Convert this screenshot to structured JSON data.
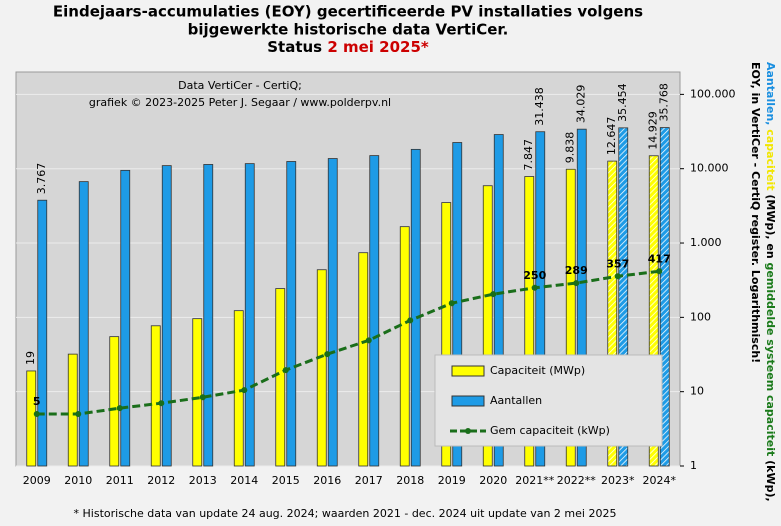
{
  "chart_data": {
    "type": "bar",
    "title": [
      "Eindejaars-accumulaties (EOY) gecertificeerde PV installaties volgens",
      "bijgewerkte historische data VertiCer."
    ],
    "status": "Status",
    "status_date": "2 mei 2025*",
    "status_date_color": "#cc0000",
    "annotations": [
      "Data VertiCer - CertiQ;",
      "grafiek © 2023-2025 Peter J. Segaar / www.polderpv.nl"
    ],
    "footnote": "* Historische data van update 24 aug. 2024; waarden 2021 - dec. 2024 uit update van 2 mei 2025",
    "y_label": [
      [
        {
          "text": "Aantallen, ",
          "color": "#1a8fe0"
        },
        {
          "text": "capaciteit",
          "color": "#f2e600"
        },
        {
          "text": " (MWp), en ",
          "color": "#000000"
        },
        {
          "text": "gemiddelde systeem capaciteit",
          "color": "#1a7a1a"
        },
        {
          "text": " (kWp),",
          "color": "#000000"
        }
      ],
      [
        {
          "text": "EOY, in VertiCer - CertiQ register. Logarithmisch!",
          "color": "#000000"
        }
      ]
    ],
    "categories": [
      "2009",
      "2010",
      "2011",
      "2012",
      "2013",
      "2014",
      "2015",
      "2016",
      "2017",
      "2018",
      "2019",
      "2020",
      "2021**",
      "2022**",
      "2023*",
      "2024*"
    ],
    "log_scale": true,
    "grid": true,
    "ylim": [
      1,
      200000
    ],
    "yticks": [
      1,
      10,
      100,
      {
        "value": 1000,
        "label": "1.000"
      },
      {
        "value": 10000,
        "label": "10.000"
      },
      {
        "value": 100000,
        "label": "100.000"
      }
    ],
    "series": [
      {
        "name": "Capaciteit (MWp)",
        "type": "bar",
        "color": "#ffff00",
        "label_color": "#000000",
        "values": [
          19,
          32,
          55,
          77,
          96,
          123,
          244,
          437,
          741,
          1660,
          3500,
          5900,
          7847,
          9838,
          12647,
          14929
        ],
        "value_labels": [
          "19",
          null,
          null,
          null,
          null,
          null,
          null,
          null,
          null,
          null,
          null,
          null,
          "7.847",
          "9.838",
          "12.647",
          "14.929"
        ],
        "hatched": [
          false,
          false,
          false,
          false,
          false,
          false,
          false,
          false,
          false,
          false,
          false,
          false,
          false,
          false,
          true,
          true
        ]
      },
      {
        "name": "Aantallen",
        "type": "bar",
        "color": "#1e9be6",
        "label_color": "#1a7fd0",
        "values": [
          3767,
          6700,
          9500,
          11000,
          11400,
          11700,
          12500,
          13700,
          15000,
          18200,
          22500,
          28800,
          31438,
          34029,
          35454,
          35768
        ],
        "value_labels": [
          "3.767",
          null,
          null,
          null,
          null,
          null,
          null,
          null,
          null,
          null,
          null,
          null,
          "31.438",
          "34.029",
          "35.454",
          "35.768"
        ],
        "hatched": [
          false,
          false,
          false,
          false,
          false,
          false,
          false,
          false,
          false,
          false,
          false,
          false,
          false,
          false,
          true,
          true
        ]
      },
      {
        "name": "Gem capaciteit (kWp)",
        "type": "line",
        "color": "#1a6e1a",
        "label_color": "#1a6e1a",
        "values": [
          5,
          5,
          6,
          7,
          8.4,
          10.5,
          19.5,
          32,
          49,
          91,
          155,
          205,
          250,
          289,
          357,
          417
        ],
        "value_labels": [
          "5",
          null,
          null,
          null,
          null,
          null,
          null,
          null,
          null,
          null,
          null,
          null,
          "250",
          "289",
          "357",
          "417"
        ]
      }
    ]
  }
}
